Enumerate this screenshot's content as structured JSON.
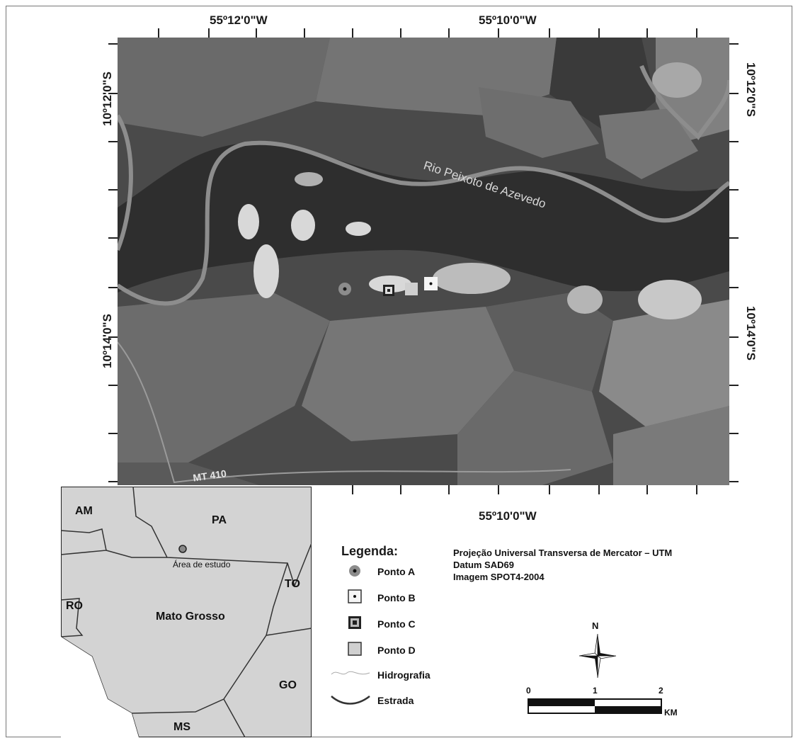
{
  "map": {
    "top_longitudes": [
      "55º12'0\"W",
      "55º10'0\"W"
    ],
    "bottom_longitude": "55º10'0\"W",
    "left_latitudes": [
      "10º12'0\"S",
      "10º14'0\"S"
    ],
    "right_latitudes": [
      "10º12'0\"S",
      "10º14'0\"S"
    ],
    "labels": {
      "river": "Rio Peixoto de Azevedo",
      "road": "MT 410"
    }
  },
  "inset": {
    "states": [
      "AM",
      "PA",
      "TO",
      "RO",
      "GO",
      "MS"
    ],
    "main_state": "Mato Grosso",
    "study_area": "Área de estudo"
  },
  "legend": {
    "title": "Legenda:",
    "items": [
      {
        "label": "Ponto A",
        "symbol": "circle-dot"
      },
      {
        "label": "Ponto B",
        "symbol": "square-dot"
      },
      {
        "label": "Ponto C",
        "symbol": "square-concentric"
      },
      {
        "label": "Ponto D",
        "symbol": "square-filled"
      },
      {
        "label": "Hidrografia",
        "symbol": "thin-wavy-line"
      },
      {
        "label": "Estrada",
        "symbol": "thick-curved-line"
      }
    ]
  },
  "projection": {
    "lines": [
      "Projeção Universal Transversa de Mercator – UTM",
      "Datum SAD69",
      "Imagem SPOT4-2004"
    ]
  },
  "north_arrow": {
    "label": "N"
  },
  "scale_bar": {
    "ticks": [
      "0",
      "1",
      "2"
    ],
    "unit": "KM"
  },
  "colors": {
    "inset_fill": "#d3d3d3",
    "satellite_dark": "#2f2f2f",
    "satellite_light": "#8a8a8a",
    "river": "#8d8d8d"
  }
}
